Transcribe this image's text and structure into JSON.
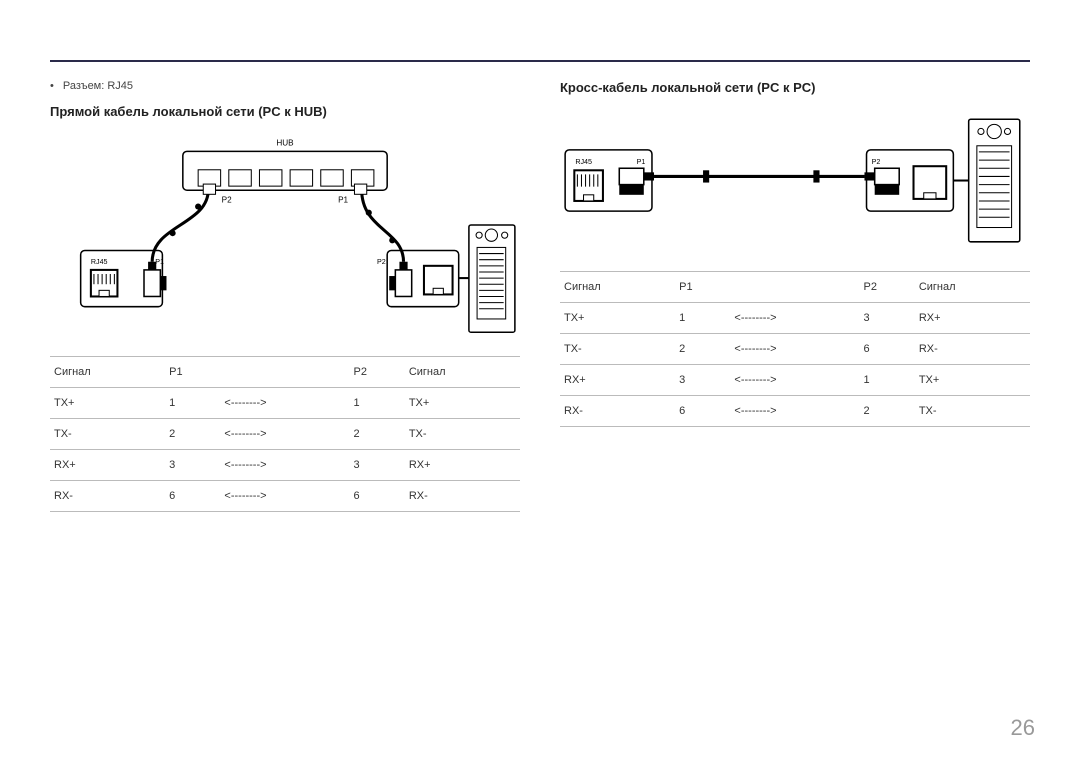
{
  "page_number": "26",
  "left": {
    "bullet": "Разъем: RJ45",
    "title": "Прямой кабель локальной сети (PC к HUB)",
    "diagram": {
      "hub_label": "HUB",
      "rj45_label": "RJ45",
      "p1_label": "P1",
      "p2_label_top": "P2",
      "p1_label_top": "P1",
      "p2_label": "P2"
    },
    "table": {
      "headers": [
        "Сигнал",
        "P1",
        "",
        "P2",
        "Сигнал"
      ],
      "rows": [
        [
          "TX+",
          "1",
          "<-------->",
          "1",
          "TX+"
        ],
        [
          "TX-",
          "2",
          "<-------->",
          "2",
          "TX-"
        ],
        [
          "RX+",
          "3",
          "<-------->",
          "3",
          "RX+"
        ],
        [
          "RX-",
          "6",
          "<-------->",
          "6",
          "RX-"
        ]
      ]
    }
  },
  "right": {
    "title": "Кросс-кабель локальной сети (PC к PC)",
    "diagram": {
      "rj45_label": "RJ45",
      "p1_label": "P1",
      "p2_label": "P2"
    },
    "table": {
      "headers": [
        "Сигнал",
        "P1",
        "",
        "P2",
        "Сигнал"
      ],
      "rows": [
        [
          "TX+",
          "1",
          "<-------->",
          "3",
          "RX+"
        ],
        [
          "TX-",
          "2",
          "<-------->",
          "6",
          "RX-"
        ],
        [
          "RX+",
          "3",
          "<-------->",
          "1",
          "TX+"
        ],
        [
          "RX-",
          "6",
          "<-------->",
          "2",
          "TX-"
        ]
      ]
    }
  },
  "colors": {
    "rule": "#2a2a4a",
    "text": "#333333",
    "page_num": "#999999",
    "border": "#bbbbbb"
  }
}
